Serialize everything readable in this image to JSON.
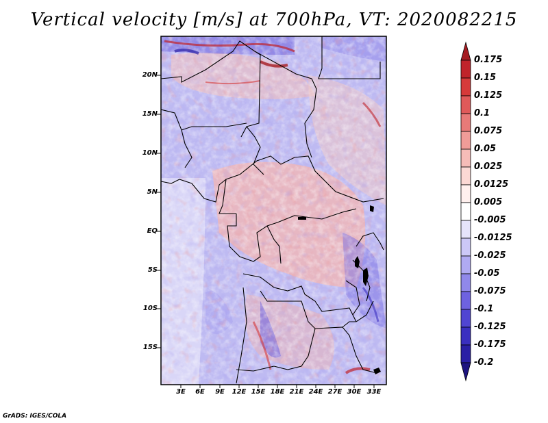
{
  "title": "Vertical velocity [m/s] at 700hPa, VT: 2020082215",
  "credit": "GrADS: IGES/COLA",
  "map": {
    "lat_labels": [
      "20N",
      "15N",
      "10N",
      "5N",
      "EQ",
      "5S",
      "10S",
      "15S"
    ],
    "lon_labels": [
      "3E",
      "6E",
      "9E",
      "12E",
      "15E",
      "18E",
      "21E",
      "24E",
      "27E",
      "30E",
      "33E"
    ],
    "lat_range": [
      -20,
      25
    ],
    "lon_range": [
      0,
      35
    ]
  },
  "colorbar": {
    "labels": [
      "0.175",
      "0.15",
      "0.125",
      "0.1",
      "0.075",
      "0.05",
      "0.025",
      "0.0125",
      "0.005",
      "-0.005",
      "-0.0125",
      "-0.025",
      "-0.05",
      "-0.075",
      "-0.1",
      "-0.125",
      "-0.175",
      "-0.2"
    ],
    "colors": [
      "#a51c22",
      "#c0242b",
      "#d63a3a",
      "#e05a5a",
      "#e87a78",
      "#f09c98",
      "#f6bcb8",
      "#fbd8d4",
      "#fff0ee",
      "#ffffff",
      "#e6e4fb",
      "#ccc8f7",
      "#b0aaf2",
      "#9088ea",
      "#6e62e0",
      "#5045d2",
      "#3a2fc0",
      "#2a1fa5",
      "#1e1480"
    ]
  }
}
